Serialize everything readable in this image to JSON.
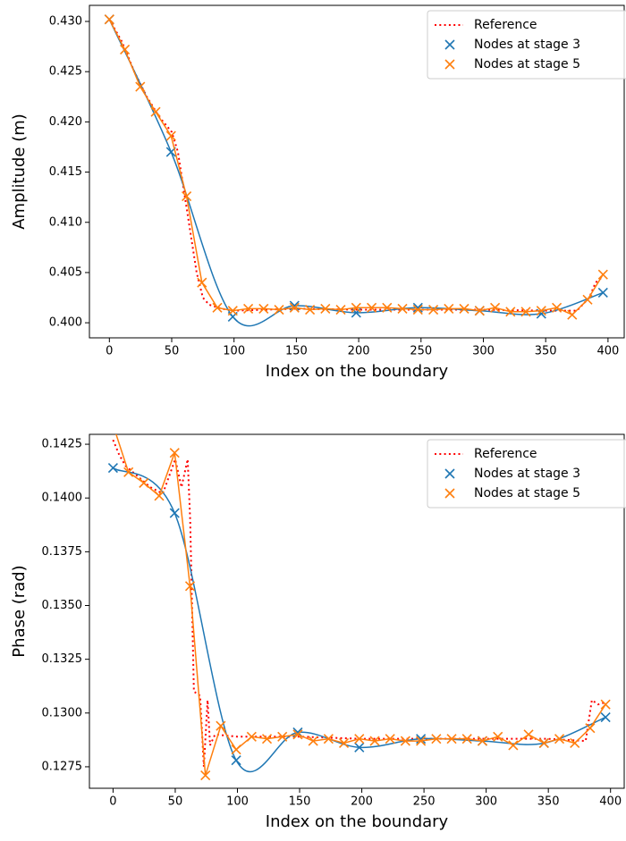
{
  "chart_data": [
    {
      "type": "line",
      "xlabel": "Index on the boundary",
      "ylabel": "Amplitude (m)",
      "xlim": [
        -16,
        413
      ],
      "ylim": [
        0.3985,
        0.4316
      ],
      "xticks": [
        0,
        50,
        100,
        150,
        200,
        250,
        300,
        350,
        400
      ],
      "yticks": [
        {
          "value": 0.4,
          "label": "0.400"
        },
        0.405,
        {
          "value": 0.41,
          "label": "0.410"
        },
        0.415,
        {
          "value": 0.42,
          "label": "0.420"
        },
        0.425,
        {
          "value": 0.43,
          "label": "0.430"
        }
      ],
      "legend": "upper right",
      "series": [
        {
          "name": "Reference",
          "color": "#ff0000",
          "line": "dotted",
          "x": [
            0,
            10,
            20,
            30,
            40,
            50,
            55,
            60,
            65,
            70,
            75,
            80,
            90,
            100,
            150,
            200,
            250,
            300,
            350,
            375,
            385,
            390,
            395
          ],
          "values": [
            0.4302,
            0.428,
            0.425,
            0.4225,
            0.4205,
            0.419,
            0.417,
            0.413,
            0.409,
            0.405,
            0.4025,
            0.4018,
            0.4014,
            0.4012,
            0.4014,
            0.4013,
            0.4013,
            0.4013,
            0.4012,
            0.4012,
            0.4025,
            0.404,
            0.4045
          ]
        },
        {
          "name": "Nodes at stage 3",
          "color": "#1f77b4",
          "line": "smooth",
          "marker": "x",
          "x": [
            0,
            49.5,
            99,
            148.5,
            198,
            247.5,
            297,
            346.5,
            396
          ],
          "values": [
            0.4302,
            0.417,
            0.4006,
            0.4017,
            0.401,
            0.4015,
            0.4012,
            0.4009,
            0.403
          ]
        },
        {
          "name": "Nodes at stage 5",
          "color": "#ff7f0e",
          "line": "solid",
          "marker": "x",
          "x": [
            0,
            12.4,
            24.75,
            37.1,
            49.5,
            61.9,
            74.25,
            86.6,
            99,
            111.4,
            123.75,
            136.1,
            148.5,
            160.9,
            173.25,
            185.6,
            198,
            210.4,
            222.75,
            235.1,
            247.5,
            259.9,
            272.25,
            284.6,
            297,
            309.4,
            321.75,
            334.1,
            346.5,
            358.9,
            371.25,
            383.6,
            396
          ],
          "values": [
            0.4302,
            0.4272,
            0.4235,
            0.421,
            0.4186,
            0.4126,
            0.404,
            0.4015,
            0.4012,
            0.4014,
            0.4014,
            0.4013,
            0.4015,
            0.4013,
            0.4014,
            0.4013,
            0.4015,
            0.4015,
            0.4015,
            0.4014,
            0.4013,
            0.4013,
            0.4014,
            0.4014,
            0.4012,
            0.4015,
            0.4011,
            0.4011,
            0.4012,
            0.4015,
            0.4008,
            0.4023,
            0.4048
          ]
        }
      ]
    },
    {
      "type": "line",
      "xlabel": "Index on the boundary",
      "ylabel": "Phase (rad)",
      "xlim": [
        -19,
        411
      ],
      "ylim": [
        0.1265,
        0.14296
      ],
      "xticks": [
        0,
        50,
        100,
        150,
        200,
        250,
        300,
        350,
        400
      ],
      "yticks": [
        0.1275,
        {
          "value": 0.13,
          "label": "0.1300"
        },
        0.1325,
        {
          "value": 0.135,
          "label": "0.1350"
        },
        0.1375,
        {
          "value": 0.14,
          "label": "0.1400"
        },
        0.1425
      ],
      "legend": "upper right",
      "series": [
        {
          "name": "Reference",
          "color": "#ff0000",
          "line": "dotted",
          "x": [
            0,
            5,
            10,
            20,
            30,
            40,
            45,
            50,
            55,
            60,
            62,
            65,
            70,
            73,
            76,
            78,
            82,
            100,
            150,
            200,
            250,
            300,
            350,
            380,
            385,
            390,
            396
          ],
          "values": [
            0.1427,
            0.142,
            0.1415,
            0.141,
            0.1405,
            0.1402,
            0.141,
            0.1418,
            0.1405,
            0.1418,
            0.139,
            0.131,
            0.1308,
            0.1275,
            0.1306,
            0.1285,
            0.129,
            0.1289,
            0.1289,
            0.1288,
            0.1288,
            0.1288,
            0.1288,
            0.1287,
            0.1306,
            0.1304,
            0.1305
          ]
        },
        {
          "name": "Nodes at stage 3",
          "color": "#1f77b4",
          "line": "smooth",
          "marker": "x",
          "x": [
            0,
            49.5,
            99,
            148.5,
            198,
            247.5,
            297,
            346.5,
            396
          ],
          "values": [
            0.1414,
            0.1393,
            0.1278,
            0.1291,
            0.1284,
            0.1288,
            0.1287,
            0.1286,
            0.1298
          ]
        },
        {
          "name": "Nodes at stage 5",
          "color": "#ff7f0e",
          "line": "solid",
          "marker": "x",
          "x": [
            0,
            12.4,
            24.75,
            37.1,
            49.5,
            61.9,
            74.25,
            86.6,
            99,
            111.4,
            123.75,
            136.1,
            148.5,
            160.9,
            173.25,
            185.6,
            198,
            210.4,
            222.75,
            235.1,
            247.5,
            259.9,
            272.25,
            284.6,
            297,
            309.4,
            321.75,
            334.1,
            346.5,
            358.9,
            371.25,
            383.6,
            396
          ],
          "values": [
            0.1434,
            0.1412,
            0.1407,
            0.1401,
            0.1421,
            0.1359,
            0.1271,
            0.1294,
            0.1283,
            0.1289,
            0.1288,
            0.1289,
            0.129,
            0.1287,
            0.1288,
            0.1286,
            0.1288,
            0.1287,
            0.1288,
            0.1287,
            0.1287,
            0.1288,
            0.1288,
            0.1288,
            0.1287,
            0.1289,
            0.1285,
            0.129,
            0.1286,
            0.1288,
            0.1286,
            0.1293,
            0.1304
          ]
        }
      ]
    }
  ]
}
